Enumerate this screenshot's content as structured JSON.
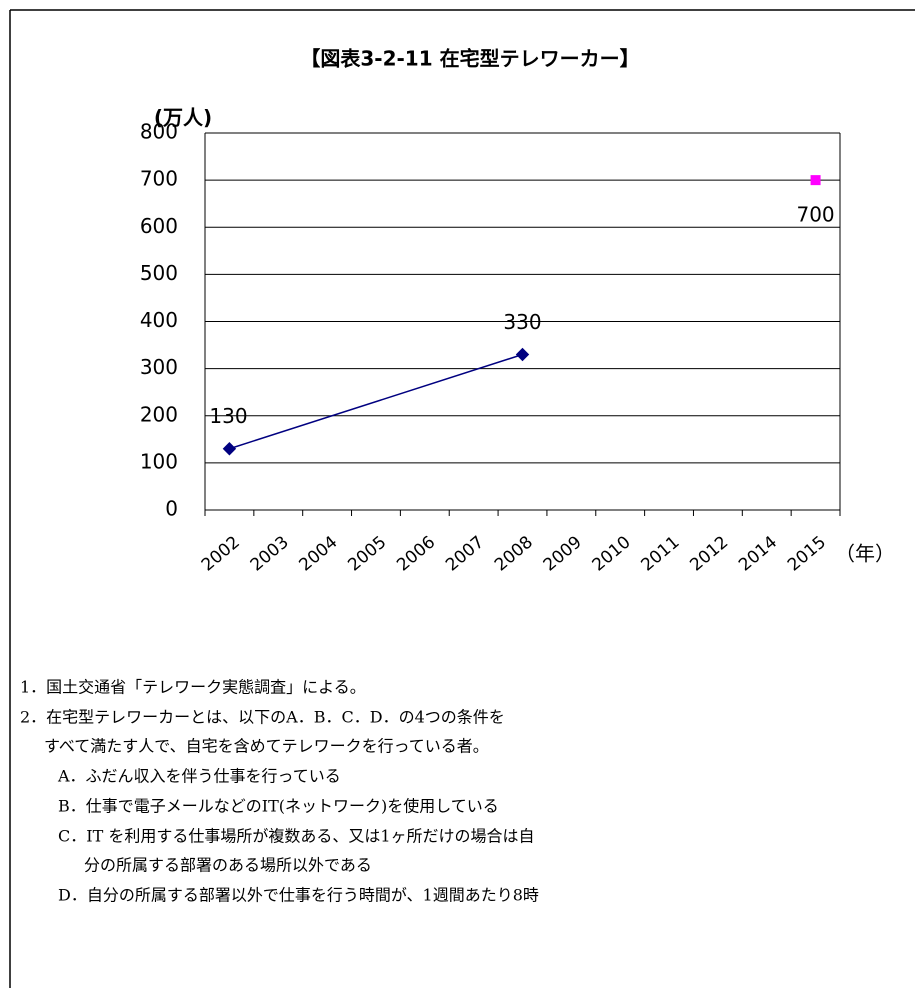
{
  "chart_data": {
    "type": "line",
    "title": "【図表3-2-11 在宅型テレワーカー】",
    "y_label": "(万人)",
    "x_label": "（年）",
    "categories": [
      "2002",
      "2003",
      "2004",
      "2005",
      "2006",
      "2007",
      "2008",
      "2009",
      "2010",
      "2011",
      "2012",
      "2014",
      "2015"
    ],
    "series": [
      {
        "color": "#000080",
        "marker": "diamond",
        "values": [
          130,
          null,
          null,
          null,
          null,
          null,
          330,
          null,
          null,
          null,
          null,
          null,
          null
        ]
      },
      {
        "color": "#ff00ff",
        "marker": "square",
        "values": [
          null,
          null,
          null,
          null,
          null,
          null,
          null,
          null,
          null,
          null,
          null,
          null,
          700
        ]
      }
    ],
    "ylim": [
      0,
      800
    ],
    "yticks": [
      0,
      100,
      200,
      300,
      400,
      500,
      600,
      700,
      800
    ],
    "grid": true
  },
  "notes": [
    "1．国土交通省「テレワーク実態調査」による。",
    "2．在宅型テレワーカーとは、以下のA．B．C．D．の4つの条件を",
    "すべて満たす人で、自宅を含めてテレワークを行っている者。",
    "A．ふだん収入を伴う仕事を行っている",
    "B．仕事で電子メールなどのIT(ネットワーク)を使用している",
    "C．IT を利用する仕事場所が複数ある、又は1ヶ所だけの場合は自",
    "分の所属する部署のある場所以外である",
    "D．自分の所属する部署以外で仕事を行う時間が、1週間あたり8時"
  ]
}
